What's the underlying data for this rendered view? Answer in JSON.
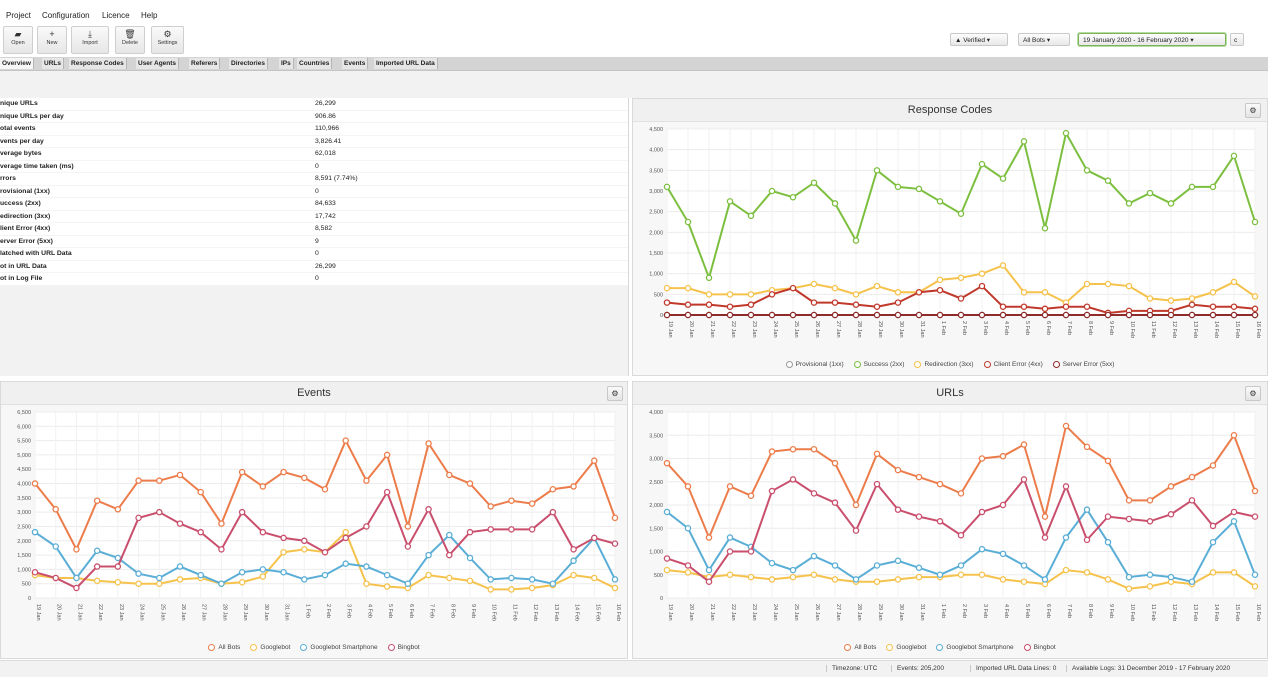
{
  "menu": [
    "Project",
    "Configuration",
    "Licence",
    "Help"
  ],
  "toolbar": [
    {
      "label": "Open",
      "icon": "folder-icon",
      "glyph": "▰"
    },
    {
      "label": "New",
      "icon": "plus-icon",
      "glyph": "+"
    },
    {
      "label": "Import",
      "icon": "import-icon",
      "glyph": "⤓"
    },
    {
      "label": "Delete",
      "icon": "trash-icon",
      "glyph": "🗑"
    },
    {
      "label": "Settings",
      "icon": "gear-icon",
      "glyph": "⚙"
    }
  ],
  "filters": {
    "verified": "Verified",
    "verified_icon": "thumbs-up-icon",
    "bots": "All Bots",
    "date_range": "19 January 2020 - 16 February 2020",
    "chevron": "▾",
    "extra": "c"
  },
  "tabs": [
    "Overview",
    "URLs",
    "Response Codes",
    "User Agents",
    "Referers",
    "Directories",
    "IPs",
    "Countries",
    "Events",
    "Imported URL Data"
  ],
  "stats": [
    {
      "label": "nique URLs",
      "value": "26,299"
    },
    {
      "label": "nique URLs per day",
      "value": "906.86"
    },
    {
      "label": "otal events",
      "value": "110,966"
    },
    {
      "label": "vents per day",
      "value": "3,826.41"
    },
    {
      "label": "verage bytes",
      "value": "62,018"
    },
    {
      "label": "verage time taken (ms)",
      "value": "0"
    },
    {
      "label": "rrors",
      "value": "8,591 (7.74%)"
    },
    {
      "label": "rovisional (1xx)",
      "value": "0"
    },
    {
      "label": "uccess (2xx)",
      "value": "84,633"
    },
    {
      "label": "edirection (3xx)",
      "value": "17,742"
    },
    {
      "label": "lient Error (4xx)",
      "value": "8,582"
    },
    {
      "label": "erver Error (5xx)",
      "value": "9"
    },
    {
      "label": "latched with URL Data",
      "value": "0"
    },
    {
      "label": "ot in URL Data",
      "value": "26,299"
    },
    {
      "label": "ot in Log File",
      "value": "0"
    }
  ],
  "panels": {
    "response_codes": "Response Codes",
    "events": "Events",
    "urls": "URLs",
    "gear_glyph": "⚙"
  },
  "status": {
    "timezone": "Timezone: UTC",
    "events": "Events: 205,200",
    "imported": "Imported URL Data Lines: 0",
    "available": "Available Logs: 31 December 2019 - 17 February 2020"
  },
  "chart_data": [
    {
      "id": "response_codes",
      "type": "line",
      "title": "Response Codes",
      "ylim": [
        0,
        4500
      ],
      "yticks": [
        "0",
        "500",
        "1,000",
        "1,500",
        "2,000",
        "2,500",
        "3,000",
        "3,500",
        "4,000",
        "4,500"
      ],
      "categories": [
        "19 Jan",
        "20 Jan",
        "21 Jan",
        "22 Jan",
        "23 Jan",
        "24 Jan",
        "25 Jan",
        "26 Jan",
        "27 Jan",
        "28 Jan",
        "29 Jan",
        "30 Jan",
        "31 Jan",
        "1 Feb",
        "2 Feb",
        "3 Feb",
        "4 Feb",
        "5 Feb",
        "6 Feb",
        "7 Feb",
        "8 Feb",
        "9 Feb",
        "10 Feb",
        "11 Feb",
        "12 Feb",
        "13 Feb",
        "14 Feb",
        "15 Feb",
        "16 Feb"
      ],
      "grid": true,
      "legend_position": "bottom",
      "series": [
        {
          "name": "Provisional (1xx)",
          "color": "#9a9a9a",
          "values": [
            0,
            0,
            0,
            0,
            0,
            0,
            0,
            0,
            0,
            0,
            0,
            0,
            0,
            0,
            0,
            0,
            0,
            0,
            0,
            0,
            0,
            0,
            0,
            0,
            0,
            0,
            0,
            0,
            0
          ]
        },
        {
          "name": "Success (2xx)",
          "color": "#7cbf3f",
          "values": [
            3100,
            2250,
            900,
            2750,
            2400,
            3000,
            2850,
            3200,
            2700,
            1800,
            3500,
            3100,
            3050,
            2750,
            2450,
            3650,
            3300,
            4200,
            2100,
            4400,
            3500,
            3250,
            2700,
            2950,
            2700,
            3100,
            3100,
            3850,
            2250
          ]
        },
        {
          "name": "Redirection (3xx)",
          "color": "#f5c24c",
          "values": [
            650,
            650,
            500,
            500,
            500,
            600,
            650,
            750,
            650,
            500,
            700,
            550,
            550,
            850,
            900,
            1000,
            1200,
            550,
            550,
            300,
            750,
            750,
            700,
            400,
            350,
            400,
            550,
            800,
            450
          ]
        },
        {
          "name": "Client Error (4xx)",
          "color": "#c0392b",
          "values": [
            300,
            250,
            250,
            200,
            250,
            500,
            650,
            300,
            300,
            250,
            200,
            300,
            550,
            600,
            400,
            700,
            200,
            200,
            150,
            200,
            200,
            50,
            100,
            100,
            100,
            250,
            200,
            200,
            150
          ]
        },
        {
          "name": "Server Error (5xx)",
          "color": "#8e2b2b",
          "values": [
            0,
            0,
            0,
            0,
            0,
            0,
            0,
            0,
            0,
            0,
            0,
            0,
            0,
            0,
            0,
            0,
            0,
            0,
            0,
            0,
            0,
            0,
            0,
            0,
            0,
            0,
            0,
            0,
            0
          ]
        }
      ]
    },
    {
      "id": "events",
      "type": "line",
      "title": "Events",
      "ylim": [
        0,
        6500
      ],
      "yticks": [
        "0",
        "500",
        "1,000",
        "1,500",
        "2,000",
        "2,500",
        "3,000",
        "3,500",
        "4,000",
        "4,500",
        "5,000",
        "5,500",
        "6,000",
        "6,500"
      ],
      "categories": [
        "19 Jan",
        "20 Jan",
        "21 Jan",
        "22 Jan",
        "23 Jan",
        "24 Jan",
        "25 Jan",
        "26 Jan",
        "27 Jan",
        "28 Jan",
        "29 Jan",
        "30 Jan",
        "31 Jan",
        "1 Feb",
        "2 Feb",
        "3 Feb",
        "4 Feb",
        "5 Feb",
        "6 Feb",
        "7 Feb",
        "8 Feb",
        "9 Feb",
        "10 Feb",
        "11 Feb",
        "12 Feb",
        "13 Feb",
        "14 Feb",
        "15 Feb",
        "16 Feb"
      ],
      "grid": true,
      "legend_position": "bottom",
      "series": [
        {
          "name": "All Bots",
          "color": "#ec7c4a",
          "values": [
            4000,
            3100,
            1700,
            3400,
            3100,
            4100,
            4100,
            4300,
            3700,
            2600,
            4400,
            3900,
            4400,
            4200,
            3800,
            5500,
            4100,
            5000,
            2500,
            5400,
            4300,
            4000,
            3200,
            3400,
            3300,
            3800,
            3900,
            4800,
            2800
          ]
        },
        {
          "name": "Googlebot",
          "color": "#f5c24c",
          "values": [
            800,
            700,
            700,
            600,
            550,
            500,
            500,
            650,
            700,
            500,
            550,
            750,
            1600,
            1700,
            1600,
            2300,
            500,
            400,
            350,
            800,
            700,
            600,
            300,
            300,
            350,
            450,
            800,
            700,
            350
          ]
        },
        {
          "name": "Googlebot Smartphone",
          "color": "#5aaed6",
          "values": [
            2300,
            1800,
            700,
            1650,
            1400,
            850,
            700,
            1100,
            800,
            500,
            900,
            1000,
            900,
            650,
            800,
            1200,
            1100,
            800,
            500,
            1500,
            2200,
            1400,
            650,
            700,
            650,
            500,
            1300,
            2100,
            650
          ]
        },
        {
          "name": "Bingbot",
          "color": "#c94f6d",
          "values": [
            900,
            700,
            350,
            1100,
            1100,
            2800,
            3000,
            2600,
            2300,
            1700,
            3000,
            2300,
            2100,
            2000,
            1600,
            2100,
            2500,
            3700,
            1800,
            3100,
            1500,
            2300,
            2400,
            2400,
            2400,
            3000,
            1700,
            2100,
            1900
          ]
        }
      ]
    },
    {
      "id": "urls",
      "type": "line",
      "title": "URLs",
      "ylim": [
        0,
        4000
      ],
      "yticks": [
        "0",
        "500",
        "1,000",
        "1,500",
        "2,000",
        "2,500",
        "3,000",
        "3,500",
        "4,000"
      ],
      "categories": [
        "19 Jan",
        "20 Jan",
        "21 Jan",
        "22 Jan",
        "23 Jan",
        "24 Jan",
        "25 Jan",
        "26 Jan",
        "27 Jan",
        "28 Jan",
        "29 Jan",
        "30 Jan",
        "31 Jan",
        "1 Feb",
        "2 Feb",
        "3 Feb",
        "4 Feb",
        "5 Feb",
        "6 Feb",
        "7 Feb",
        "8 Feb",
        "9 Feb",
        "10 Feb",
        "11 Feb",
        "12 Feb",
        "13 Feb",
        "14 Feb",
        "15 Feb",
        "16 Feb"
      ],
      "grid": true,
      "legend_position": "bottom",
      "series": [
        {
          "name": "All Bots",
          "color": "#ec7c4a",
          "values": [
            2900,
            2400,
            1300,
            2400,
            2200,
            3150,
            3200,
            3200,
            2900,
            2000,
            3100,
            2750,
            2600,
            2450,
            2250,
            3000,
            3050,
            3300,
            1750,
            3700,
            3250,
            2950,
            2100,
            2100,
            2400,
            2600,
            2850,
            3500,
            2300
          ]
        },
        {
          "name": "Googlebot",
          "color": "#f5c24c",
          "values": [
            600,
            550,
            450,
            500,
            450,
            400,
            450,
            500,
            400,
            350,
            350,
            400,
            450,
            450,
            500,
            500,
            400,
            350,
            300,
            600,
            550,
            400,
            200,
            250,
            350,
            300,
            550,
            550,
            250
          ]
        },
        {
          "name": "Googlebot Smartphone",
          "color": "#5aaed6",
          "values": [
            1850,
            1500,
            600,
            1300,
            1100,
            750,
            600,
            900,
            700,
            400,
            700,
            800,
            650,
            500,
            700,
            1050,
            950,
            700,
            400,
            1300,
            1900,
            1200,
            450,
            500,
            450,
            350,
            1200,
            1650,
            500
          ]
        },
        {
          "name": "Bingbot",
          "color": "#c94f6d",
          "values": [
            850,
            700,
            350,
            1000,
            1000,
            2300,
            2550,
            2250,
            2050,
            1450,
            2450,
            1900,
            1750,
            1650,
            1350,
            1850,
            2000,
            2550,
            1300,
            2400,
            1250,
            1750,
            1700,
            1650,
            1800,
            2100,
            1550,
            1850,
            1750
          ]
        }
      ]
    }
  ]
}
